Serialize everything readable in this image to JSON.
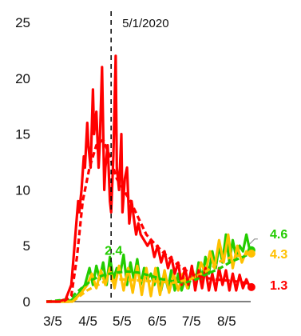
{
  "chart_data": {
    "type": "line",
    "title": "",
    "xlabel": "",
    "ylabel": "",
    "x_ticks": [
      "3/5",
      "4/5",
      "5/5",
      "6/5",
      "7/5",
      "8/5"
    ],
    "x_range": [
      "2020-03-05",
      "2020-09-05"
    ],
    "y_ticks": [
      "0",
      "5",
      "10",
      "15",
      "20",
      "25"
    ],
    "ylim": [
      0,
      25
    ],
    "grid": false,
    "legend": "none",
    "annotations": [
      {
        "type": "vline",
        "date": "2020-05-01",
        "label": "5/1/2020",
        "style": "dashed"
      }
    ],
    "series": [
      {
        "color": "#ff0000",
        "end_label": "1.3",
        "daily_dates": [
          "2020-03-05",
          "2020-03-15",
          "2020-03-22",
          "2020-03-27",
          "2020-03-29",
          "2020-03-31",
          "2020-04-02",
          "2020-04-03",
          "2020-04-05",
          "2020-04-07",
          "2020-04-08",
          "2020-04-10",
          "2020-04-11",
          "2020-04-13",
          "2020-04-15",
          "2020-04-16",
          "2020-04-18",
          "2020-04-20",
          "2020-04-21",
          "2020-04-23",
          "2020-04-25",
          "2020-04-26",
          "2020-04-28",
          "2020-04-30",
          "2020-05-01",
          "2020-05-03",
          "2020-05-05",
          "2020-05-06",
          "2020-05-08",
          "2020-05-10",
          "2020-05-11",
          "2020-05-13",
          "2020-05-15",
          "2020-05-17",
          "2020-05-19",
          "2020-05-21",
          "2020-05-23",
          "2020-05-25",
          "2020-05-27",
          "2020-05-30",
          "2020-06-02",
          "2020-06-05",
          "2020-06-08",
          "2020-06-11",
          "2020-06-14",
          "2020-06-17",
          "2020-06-20",
          "2020-06-23",
          "2020-06-26",
          "2020-06-29",
          "2020-07-02",
          "2020-07-05",
          "2020-07-08",
          "2020-07-11",
          "2020-07-14",
          "2020-07-17",
          "2020-07-20",
          "2020-07-23",
          "2020-07-26",
          "2020-07-29",
          "2020-08-01",
          "2020-08-04",
          "2020-08-07",
          "2020-08-10",
          "2020-08-13",
          "2020-08-16",
          "2020-08-19",
          "2020-08-22",
          "2020-08-25",
          "2020-08-28",
          "2020-08-31"
        ],
        "daily_values": [
          0,
          0,
          0.2,
          1.5,
          4,
          6.5,
          9,
          8,
          10,
          13,
          12,
          16,
          14,
          12,
          19,
          15,
          17,
          12,
          14,
          21,
          10,
          12,
          14,
          9,
          8,
          13,
          22,
          12,
          10,
          15,
          8,
          11,
          12,
          7,
          9,
          7.5,
          6,
          7,
          6,
          5.5,
          5,
          5.5,
          4,
          5,
          3.5,
          4.5,
          3,
          4,
          2.5,
          3.5,
          1.5,
          3,
          1.5,
          3.2,
          1,
          2.8,
          1.2,
          3,
          1,
          2.5,
          1,
          3,
          1.5,
          2.8,
          1,
          2.5,
          1,
          2.4,
          1.2,
          2,
          1.3
        ],
        "avg_dates": [
          "2020-03-05",
          "2020-03-20",
          "2020-03-27",
          "2020-04-01",
          "2020-04-06",
          "2020-04-12",
          "2020-04-18",
          "2020-04-24",
          "2020-04-30",
          "2020-05-06",
          "2020-05-12",
          "2020-05-18",
          "2020-05-25",
          "2020-06-01",
          "2020-06-10",
          "2020-06-20",
          "2020-06-30",
          "2020-07-10",
          "2020-07-20",
          "2020-07-30",
          "2020-08-10",
          "2020-08-20",
          "2020-08-31"
        ],
        "avg_values": [
          0,
          0,
          0.5,
          4,
          9,
          12,
          14,
          14.5,
          13,
          11,
          10,
          9,
          7.5,
          6,
          5,
          4,
          3.2,
          2.5,
          2.2,
          2,
          1.9,
          1.8,
          1.6
        ]
      },
      {
        "color": "#22cc00",
        "end_label": "4.6",
        "peak_label": "2.4",
        "daily_dates": [
          "2020-03-05",
          "2020-03-25",
          "2020-04-01",
          "2020-04-08",
          "2020-04-12",
          "2020-04-15",
          "2020-04-18",
          "2020-04-21",
          "2020-04-24",
          "2020-04-27",
          "2020-04-30",
          "2020-05-03",
          "2020-05-06",
          "2020-05-09",
          "2020-05-12",
          "2020-05-15",
          "2020-05-18",
          "2020-05-21",
          "2020-05-24",
          "2020-05-27",
          "2020-05-30",
          "2020-06-02",
          "2020-06-05",
          "2020-06-08",
          "2020-06-11",
          "2020-06-14",
          "2020-06-17",
          "2020-06-20",
          "2020-06-23",
          "2020-06-26",
          "2020-06-29",
          "2020-07-02",
          "2020-07-05",
          "2020-07-08",
          "2020-07-11",
          "2020-07-14",
          "2020-07-17",
          "2020-07-20",
          "2020-07-23",
          "2020-07-26",
          "2020-07-29",
          "2020-08-01",
          "2020-08-04",
          "2020-08-07",
          "2020-08-10",
          "2020-08-13",
          "2020-08-16",
          "2020-08-19",
          "2020-08-22",
          "2020-08-25",
          "2020-08-28",
          "2020-08-31"
        ],
        "daily_values": [
          0,
          0,
          0.5,
          1.5,
          3,
          1.5,
          3.2,
          2,
          3.5,
          1.5,
          4,
          2,
          3,
          2.5,
          4.2,
          1.5,
          3.5,
          2,
          3.8,
          1.5,
          3,
          2,
          2.5,
          1.5,
          3,
          1,
          2.5,
          1.2,
          2.8,
          1,
          2.5,
          1,
          2,
          1.2,
          3,
          1.5,
          3.5,
          2,
          4,
          2.5,
          4.5,
          3,
          5,
          3.5,
          6,
          3.5,
          5.5,
          4,
          5,
          4.5,
          6,
          4.6
        ],
        "avg_dates": [
          "2020-03-05",
          "2020-03-25",
          "2020-04-05",
          "2020-04-15",
          "2020-04-25",
          "2020-05-05",
          "2020-05-15",
          "2020-05-25",
          "2020-06-05",
          "2020-06-15",
          "2020-06-25",
          "2020-07-05",
          "2020-07-15",
          "2020-07-25",
          "2020-08-05",
          "2020-08-15",
          "2020-08-25",
          "2020-08-31"
        ],
        "avg_values": [
          0,
          0.2,
          1.2,
          2,
          2.4,
          2.6,
          2.7,
          2.6,
          2.3,
          2,
          1.8,
          1.7,
          2,
          2.5,
          3,
          3.6,
          4,
          4.3
        ]
      },
      {
        "color": "#ffc000",
        "end_label": "4.3",
        "daily_dates": [
          "2020-03-05",
          "2020-03-28",
          "2020-04-05",
          "2020-04-10",
          "2020-04-14",
          "2020-04-18",
          "2020-04-22",
          "2020-04-26",
          "2020-04-30",
          "2020-05-04",
          "2020-05-08",
          "2020-05-12",
          "2020-05-16",
          "2020-05-20",
          "2020-05-24",
          "2020-05-28",
          "2020-06-01",
          "2020-06-05",
          "2020-06-09",
          "2020-06-13",
          "2020-06-17",
          "2020-06-21",
          "2020-06-25",
          "2020-06-29",
          "2020-07-03",
          "2020-07-07",
          "2020-07-11",
          "2020-07-15",
          "2020-07-19",
          "2020-07-23",
          "2020-07-27",
          "2020-07-31",
          "2020-08-04",
          "2020-08-08",
          "2020-08-12",
          "2020-08-16",
          "2020-08-20",
          "2020-08-24",
          "2020-08-28",
          "2020-08-31"
        ],
        "daily_values": [
          0,
          0,
          0.8,
          1.5,
          2.5,
          1.2,
          2.8,
          1.5,
          3,
          1.2,
          3.2,
          1,
          3,
          0.8,
          3.2,
          0.6,
          3,
          0.5,
          3,
          0.6,
          2.8,
          0.8,
          2.5,
          1,
          2.5,
          1.2,
          3,
          1.8,
          3.5,
          2.5,
          4.5,
          3,
          5.5,
          3.5,
          6,
          3,
          5,
          3.5,
          4.5,
          4.3
        ],
        "avg_dates": [
          "2020-03-05",
          "2020-03-28",
          "2020-04-10",
          "2020-04-25",
          "2020-05-10",
          "2020-05-25",
          "2020-06-10",
          "2020-06-25",
          "2020-07-10",
          "2020-07-25",
          "2020-08-05",
          "2020-08-15",
          "2020-08-25",
          "2020-08-31"
        ],
        "avg_values": [
          0,
          0,
          1,
          1.8,
          2,
          1.9,
          1.8,
          1.7,
          2,
          2.8,
          3.6,
          4,
          4.2,
          4.3
        ]
      }
    ]
  }
}
